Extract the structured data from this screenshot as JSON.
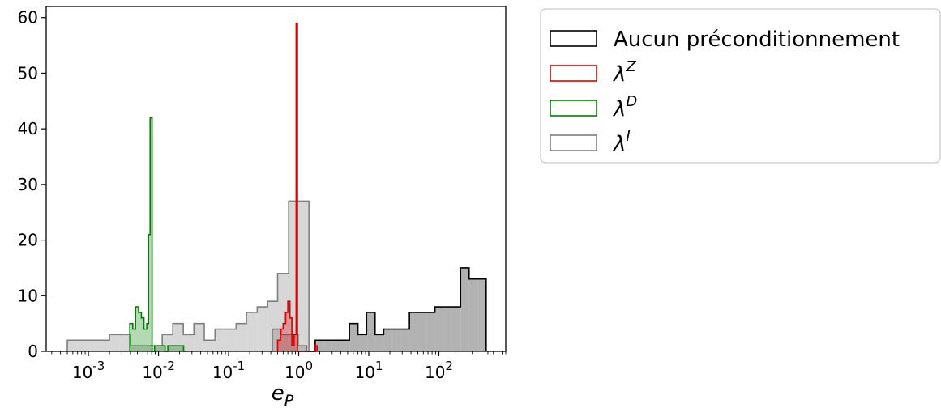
{
  "chart_data": {
    "type": "histogram",
    "title": "",
    "xlabel": {
      "base": "e",
      "sub": "P"
    },
    "ylabel": "",
    "xscale": "log",
    "xlim": [
      0.00025,
      900
    ],
    "ylim": [
      0,
      62
    ],
    "grid": false,
    "legend_position": "outside-top-right",
    "x_ticks": [
      {
        "base": "10",
        "exp": "-3",
        "value": 0.001
      },
      {
        "base": "10",
        "exp": "-2",
        "value": 0.01
      },
      {
        "base": "10",
        "exp": "-1",
        "value": 0.1
      },
      {
        "base": "10",
        "exp": "0",
        "value": 1
      },
      {
        "base": "10",
        "exp": "1",
        "value": 10
      },
      {
        "base": "10",
        "exp": "2",
        "value": 100
      }
    ],
    "y_ticks": [
      0,
      10,
      20,
      30,
      40,
      50,
      60
    ],
    "series": [
      {
        "name": "Aucun préconditionnement",
        "stroke": "#000000",
        "fill": "#7f7f7f",
        "fill_opacity": 0.6,
        "edges": [
          0.42,
          0.56,
          0.74,
          0.98,
          1.3,
          1.72,
          2.3,
          3.0,
          4.0,
          5.3,
          7.0,
          9.3,
          12.3,
          16.3,
          21.5,
          28.5,
          38,
          50,
          66,
          88,
          116,
          154,
          204,
          270,
          357,
          473
        ],
        "counts": [
          4,
          3,
          3,
          1,
          0,
          2,
          2,
          2,
          2,
          5,
          3,
          7,
          3,
          4,
          4,
          4,
          7,
          7,
          7,
          8,
          8,
          8,
          15,
          13,
          13
        ]
      },
      {
        "name": "λ^I",
        "stroke": "#7f7f7f",
        "fill": "#bdbdbd",
        "fill_opacity": 0.6,
        "edges": [
          0.0005,
          0.00071,
          0.001,
          0.0014,
          0.002,
          0.0028,
          0.004,
          0.0057,
          0.008,
          0.0113,
          0.016,
          0.0226,
          0.032,
          0.045,
          0.064,
          0.09,
          0.128,
          0.18,
          0.256,
          0.36,
          0.5,
          0.72,
          1.0,
          1.4
        ],
        "counts": [
          2,
          2,
          2,
          2,
          3,
          3,
          1,
          1,
          1,
          3,
          5,
          3,
          5,
          2,
          4,
          4,
          5,
          7,
          8,
          9,
          14,
          27,
          27
        ]
      },
      {
        "name": "λ^D",
        "stroke": "#008000",
        "fill": "#008000",
        "fill_opacity": 0.3,
        "edges": [
          0.0039,
          0.0043,
          0.0047,
          0.0052,
          0.0057,
          0.0062,
          0.0068,
          0.0072,
          0.0076,
          0.0081,
          0.0088,
          0.0124,
          0.0136,
          0.0228,
          0.025
        ],
        "counts": [
          5,
          4,
          8,
          7,
          6,
          4,
          5,
          21,
          42,
          0,
          1,
          0,
          1,
          0
        ]
      },
      {
        "name": "λ^Z",
        "stroke": "#e00000",
        "fill": "#e00000",
        "fill_opacity": 0.3,
        "edges": [
          0.5,
          0.55,
          0.6,
          0.65,
          0.7,
          0.75,
          0.8,
          0.86,
          0.92,
          0.96,
          1.03,
          1.68,
          1.83
        ],
        "counts": [
          2,
          4,
          5,
          7,
          9,
          6,
          1,
          3,
          59,
          0,
          0,
          1
        ]
      }
    ],
    "legend_order": [
      0,
      3,
      2,
      1
    ]
  }
}
